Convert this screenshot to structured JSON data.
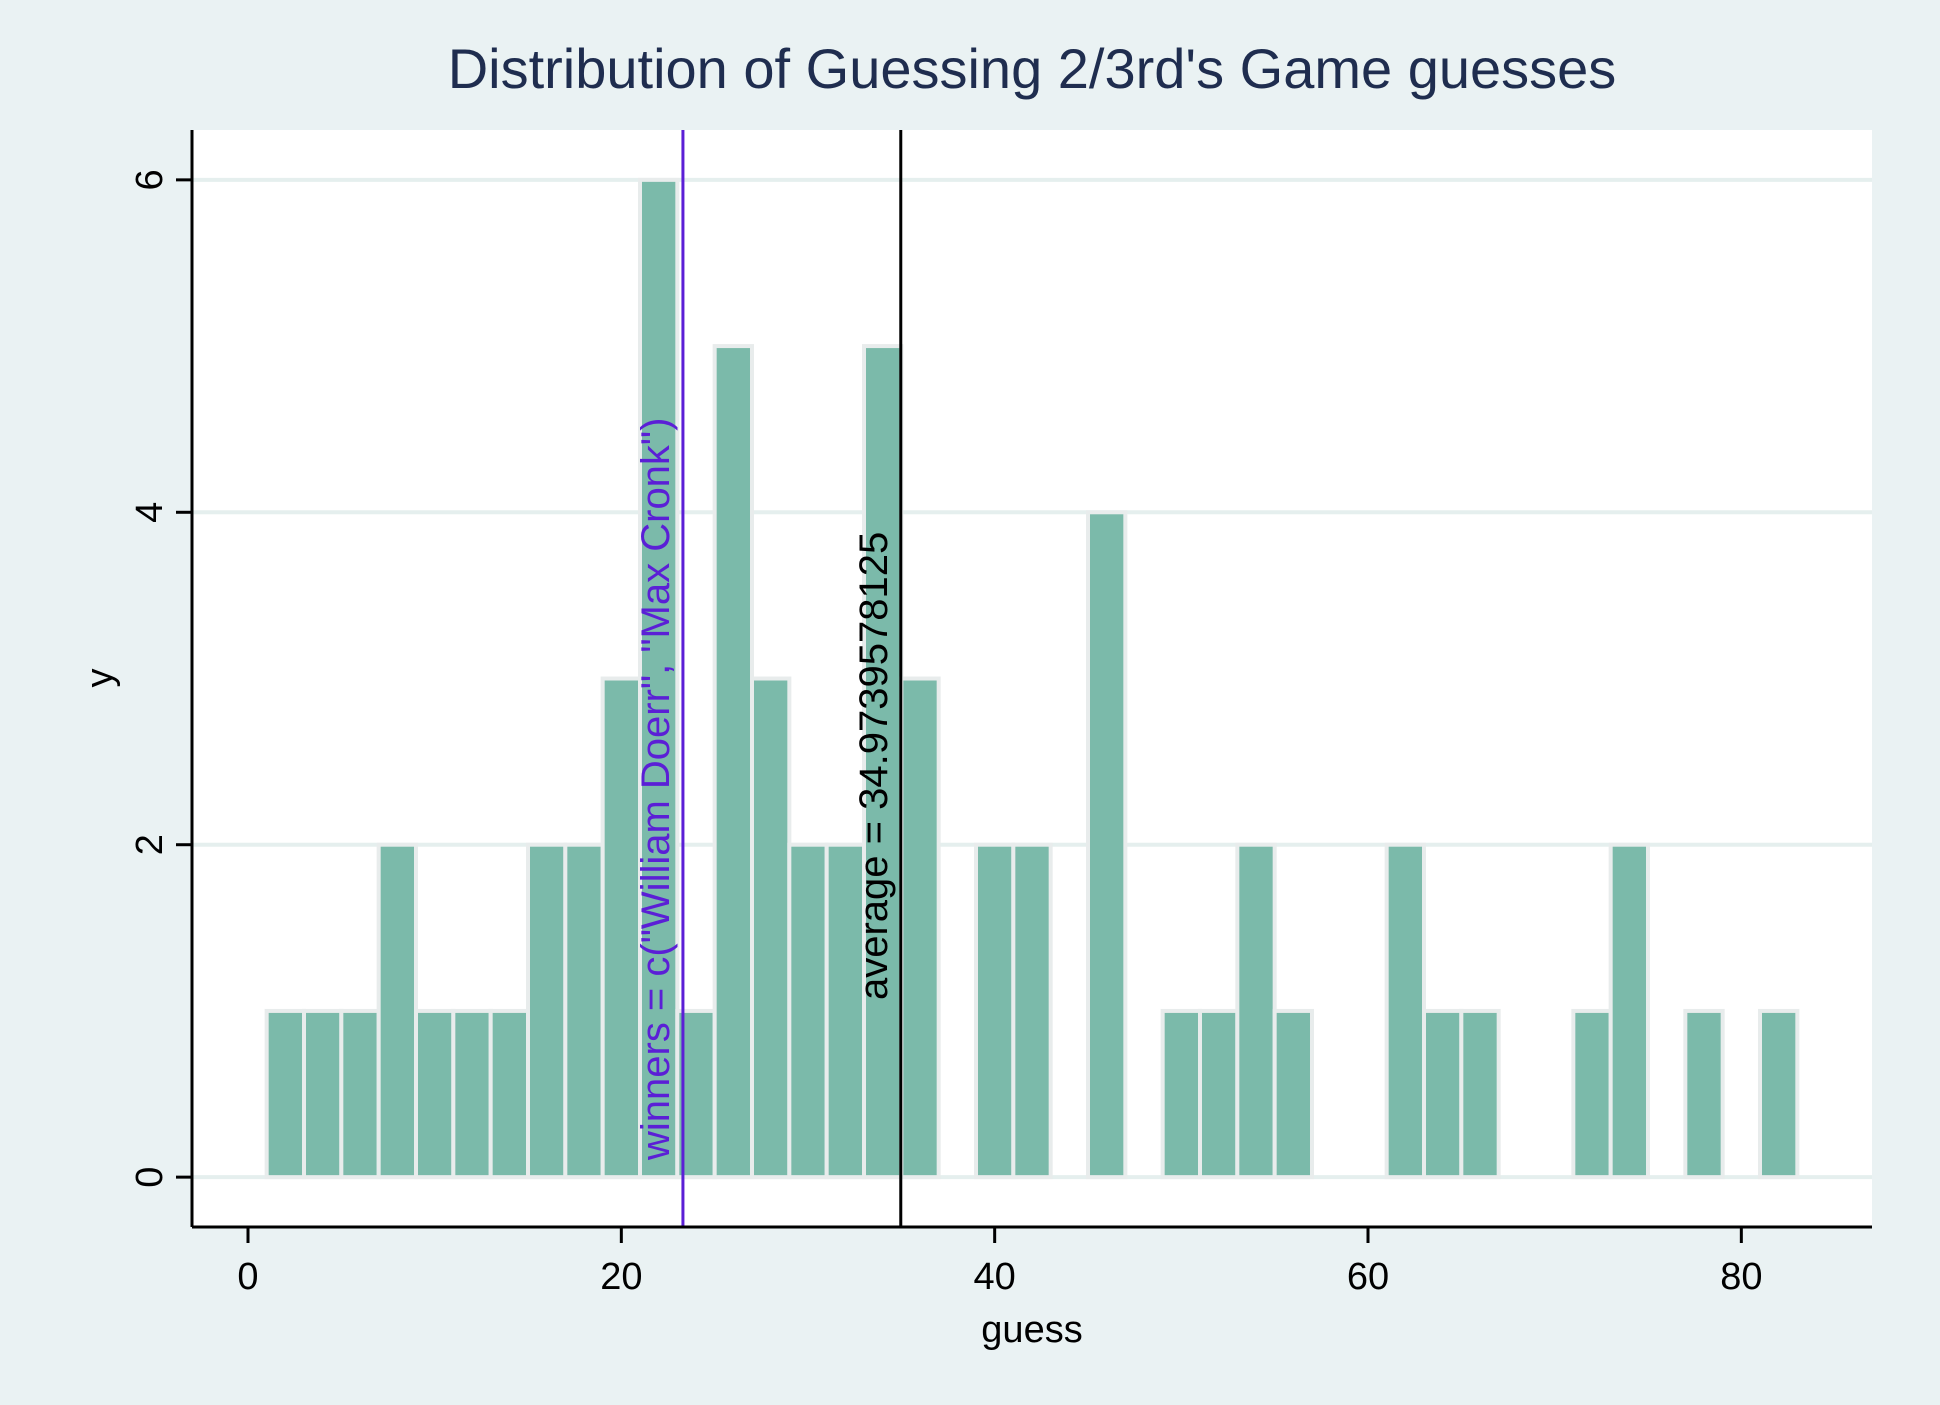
{
  "chart_data": {
    "type": "bar",
    "title": "Distribution of Guessing 2/3rd's Game guesses",
    "xlabel": "guess",
    "ylabel": "y",
    "xlim": [
      -3,
      87
    ],
    "ylim": [
      -0.3,
      6.3
    ],
    "x_ticks": [
      0,
      20,
      40,
      60,
      80
    ],
    "y_ticks": [
      0,
      2,
      4,
      6
    ],
    "grid": true,
    "bin_width": 2,
    "bins": [
      {
        "start": 1,
        "count": 1
      },
      {
        "start": 3,
        "count": 1
      },
      {
        "start": 5,
        "count": 1
      },
      {
        "start": 7,
        "count": 2
      },
      {
        "start": 9,
        "count": 1
      },
      {
        "start": 11,
        "count": 1
      },
      {
        "start": 13,
        "count": 1
      },
      {
        "start": 15,
        "count": 2
      },
      {
        "start": 17,
        "count": 2
      },
      {
        "start": 19,
        "count": 3
      },
      {
        "start": 21,
        "count": 6
      },
      {
        "start": 23,
        "count": 1
      },
      {
        "start": 25,
        "count": 5
      },
      {
        "start": 27,
        "count": 3
      },
      {
        "start": 29,
        "count": 2
      },
      {
        "start": 31,
        "count": 2
      },
      {
        "start": 33,
        "count": 5
      },
      {
        "start": 35,
        "count": 3
      },
      {
        "start": 39,
        "count": 2
      },
      {
        "start": 41,
        "count": 2
      },
      {
        "start": 45,
        "count": 4
      },
      {
        "start": 49,
        "count": 1
      },
      {
        "start": 51,
        "count": 1
      },
      {
        "start": 53,
        "count": 2
      },
      {
        "start": 55,
        "count": 1
      },
      {
        "start": 61,
        "count": 2
      },
      {
        "start": 63,
        "count": 1
      },
      {
        "start": 65,
        "count": 1
      },
      {
        "start": 71,
        "count": 1
      },
      {
        "start": 73,
        "count": 2
      },
      {
        "start": 77,
        "count": 1
      },
      {
        "start": 81,
        "count": 1
      }
    ],
    "annotations": [
      {
        "type": "vline",
        "x": 23.3,
        "label": "winners = c(\"William Doerr\", \"Max Cronk\")",
        "color": "#5b1fd6"
      },
      {
        "type": "vline",
        "x": 34.97,
        "label": "average = 34.9739578125",
        "color": "#000000"
      }
    ],
    "colors": {
      "bar_fill": "#7bbaaa",
      "bar_stroke": "#e8ecec",
      "plot_bg": "#ffffff",
      "page_bg": "#eaf2f3",
      "grid": "#e5efee",
      "title": "#1f2d4f",
      "winner_line": "#5b1fd6",
      "average_line": "#000000"
    }
  }
}
